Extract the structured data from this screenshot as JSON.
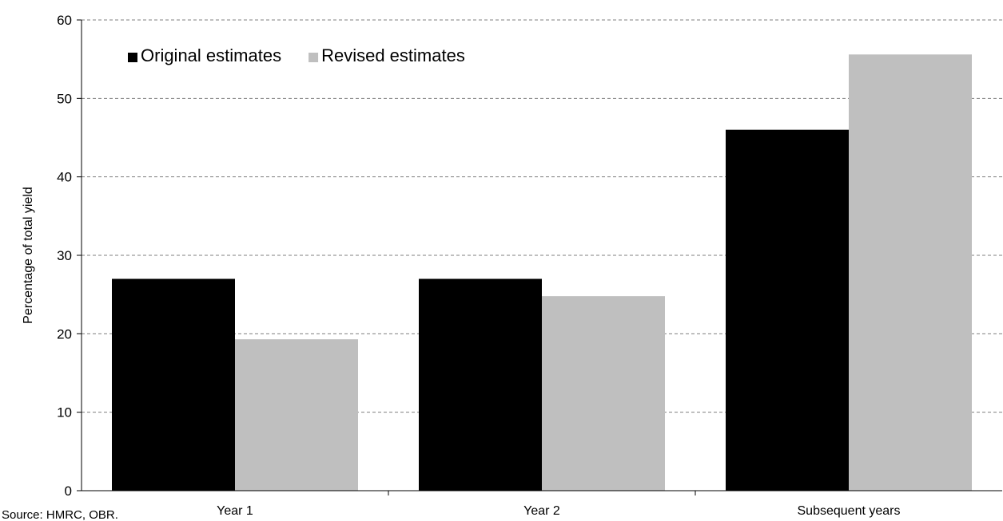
{
  "chart_data": {
    "type": "bar",
    "categories": [
      "Year 1",
      "Year 2",
      "Subsequent years"
    ],
    "series": [
      {
        "name": "Original estimates",
        "values": [
          27,
          27,
          46
        ],
        "color": "#000000"
      },
      {
        "name": "Revised estimates",
        "values": [
          19.3,
          24.8,
          55.6
        ],
        "color": "#bfbfbf"
      }
    ],
    "ylabel": "Percentage of total yield",
    "xlabel": "",
    "ylim": [
      0,
      60
    ],
    "yticks": [
      0,
      10,
      20,
      30,
      40,
      50,
      60
    ],
    "grid": true,
    "grid_style": "dashed",
    "legend_position": "top-left",
    "source": "Source: HMRC, OBR."
  }
}
